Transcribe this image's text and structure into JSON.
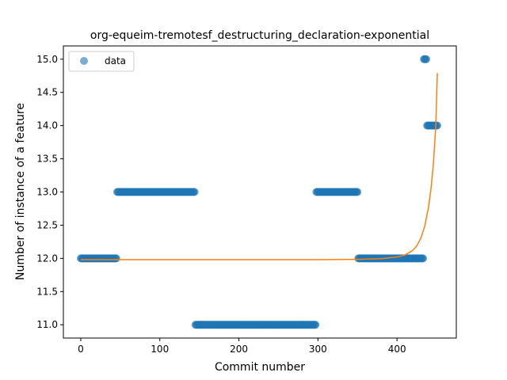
{
  "chart_data": {
    "type": "scatter",
    "title": "org-equeim-tremotesf_destructuring_declaration-exponential",
    "xlabel": "Commit number",
    "ylabel": "Number of instance of a feature",
    "xlim": [
      -22,
      475
    ],
    "ylim": [
      10.8,
      15.2
    ],
    "xticks": [
      0,
      100,
      200,
      300,
      400
    ],
    "yticks": [
      11.0,
      11.5,
      12.0,
      12.5,
      13.0,
      13.5,
      14.0,
      14.5,
      15.0
    ],
    "ytick_labels": [
      "11.0",
      "11.5",
      "12.0",
      "12.5",
      "13.0",
      "13.5",
      "14.0",
      "14.5",
      "15.0"
    ],
    "legend": {
      "position": "upper-left",
      "entries": [
        "data"
      ]
    },
    "series": [
      {
        "name": "data",
        "kind": "points",
        "color": "#1f77b4",
        "segments": [
          {
            "x_start": 0,
            "x_end": 46,
            "y": 12
          },
          {
            "x_start": 46,
            "x_end": 145,
            "y": 13
          },
          {
            "x_start": 145,
            "x_end": 298,
            "y": 11
          },
          {
            "x_start": 298,
            "x_end": 351,
            "y": 13
          },
          {
            "x_start": 351,
            "x_end": 434,
            "y": 12
          },
          {
            "x_start": 434,
            "x_end": 438,
            "y": 15
          },
          {
            "x_start": 438,
            "x_end": 451,
            "y": 14
          }
        ]
      },
      {
        "kind": "fit-line",
        "color": "#ff7f0e",
        "model": "exponential",
        "x_range": [
          0,
          451
        ],
        "points": [
          [
            0,
            11.98
          ],
          [
            300,
            11.98
          ],
          [
            350,
            11.985
          ],
          [
            380,
            11.995
          ],
          [
            400,
            12.02
          ],
          [
            410,
            12.05
          ],
          [
            420,
            12.12
          ],
          [
            425,
            12.19
          ],
          [
            430,
            12.3
          ],
          [
            435,
            12.48
          ],
          [
            440,
            12.78
          ],
          [
            443,
            13.05
          ],
          [
            446,
            13.42
          ],
          [
            449,
            13.98
          ],
          [
            451,
            14.79
          ]
        ]
      }
    ]
  }
}
